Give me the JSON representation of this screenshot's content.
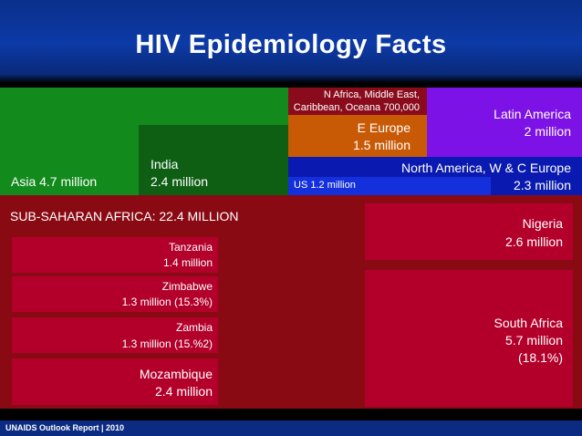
{
  "title": "HIV Epidemiology Facts",
  "regions": {
    "asia": "Asia 4.7 million",
    "india": [
      "India",
      "2.4 million"
    ],
    "n_africa": [
      "N Africa, Middle East,",
      "Caribbean, Oceana 700,000"
    ],
    "e_europe": [
      "E Europe",
      "1.5 million"
    ],
    "latin_america": [
      "Latin America",
      "2 million"
    ],
    "north_america": [
      "North America, W & C Europe",
      "2.3 million"
    ],
    "us": "US 1.2 million",
    "ssa": "SUB-SAHARAN AFRICA:  22.4 MILLION",
    "nigeria": [
      "Nigeria",
      "2.6 million"
    ],
    "tanzania": [
      "Tanzania",
      "1.4 million"
    ],
    "zimbabwe": [
      "Zimbabwe",
      "1.3 million (15.3%)"
    ],
    "zambia": [
      "Zambia",
      "1.3 million (15.%2)"
    ],
    "mozambique": [
      "Mozambique",
      "2.4 million"
    ],
    "south_africa": [
      "South Africa",
      "5.7 million",
      "(18.1%)"
    ]
  },
  "footer": "UNAIDS Outlook Report | 2010",
  "colors": {
    "asia": "#138a1c",
    "india": "#0e5f14",
    "n_africa": "#8a0c1c",
    "e_europe": "#c85a06",
    "latin_america": "#7d12e6",
    "north_america": "#0a1ab0",
    "us": "#1430dd",
    "ssa": "#8a0a14",
    "country": "#b3002b"
  }
}
